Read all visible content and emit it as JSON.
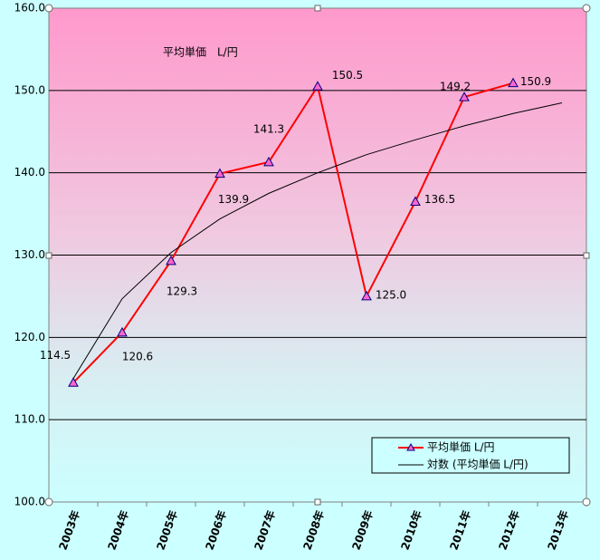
{
  "chart_data": {
    "type": "line",
    "title": "平均単価　L/円",
    "categories": [
      "2003年",
      "2004年",
      "2005年",
      "2006年",
      "2007年",
      "2008年",
      "2009年",
      "2010年",
      "2011年",
      "2012年",
      "2013年"
    ],
    "series": [
      {
        "name": "平均単価 L/円",
        "color": "#ff0000",
        "marker_color": "#ff66cc",
        "values": [
          114.5,
          120.6,
          129.3,
          139.9,
          141.3,
          150.5,
          125.0,
          136.5,
          149.2,
          150.9,
          null
        ],
        "value_labels": [
          "114.5",
          "120.6",
          "129.3",
          "139.9",
          "141.3",
          "150.5",
          "125.0",
          "136.5",
          "149.2",
          "150.9",
          null
        ]
      },
      {
        "name": "対数 (平均単価 L/円)",
        "color": "#000000",
        "values": [
          115.0,
          124.7,
          130.3,
          134.4,
          137.5,
          140.0,
          142.2,
          144.0,
          145.7,
          147.2,
          148.5
        ]
      }
    ],
    "ylim": [
      100,
      160
    ],
    "yticks": [
      {
        "value": 100,
        "label": "100.0"
      },
      {
        "value": 110,
        "label": "110.0"
      },
      {
        "value": 120,
        "label": "120.0"
      },
      {
        "value": 130,
        "label": "130.0"
      },
      {
        "value": 140,
        "label": "140.0"
      },
      {
        "value": 150,
        "label": "150.0"
      },
      {
        "value": 160,
        "label": "160.0"
      }
    ],
    "grid": true,
    "legend": "lower right"
  }
}
